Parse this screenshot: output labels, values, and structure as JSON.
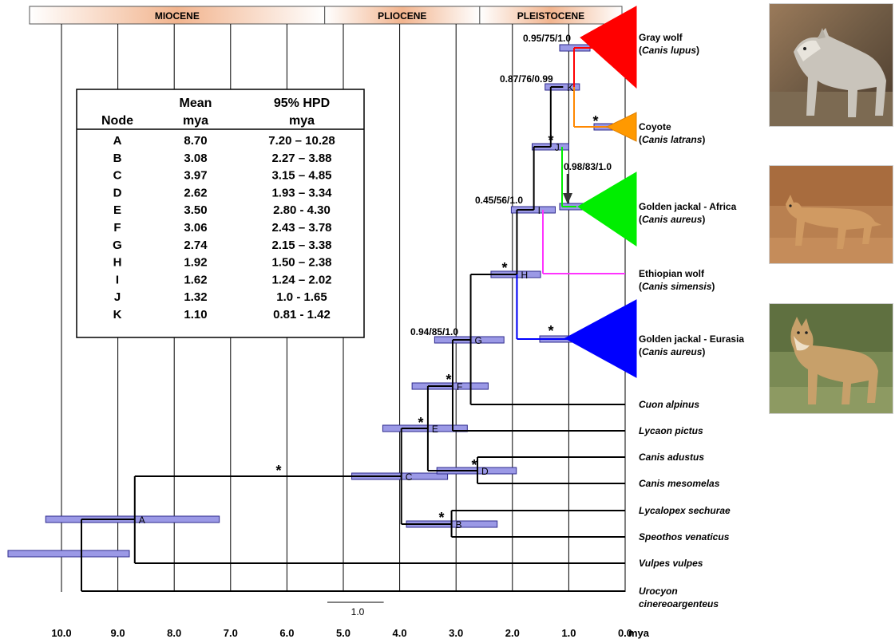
{
  "epochs": [
    {
      "name": "MIOCENE",
      "start": 11.08,
      "end": 5.33
    },
    {
      "name": "PLIOCENE",
      "start": 5.33,
      "end": 2.58
    },
    {
      "name": "PLEISTOCENE",
      "start": 2.58,
      "end": 0.0
    }
  ],
  "axis": {
    "unit": "mya",
    "min": 0.0,
    "max": 10.0,
    "step": 1.0,
    "tick_labels": [
      "10.0",
      "9.0",
      "8.0",
      "7.0",
      "6.0",
      "5.0",
      "4.0",
      "3.0",
      "2.0",
      "1.0",
      "0.0"
    ],
    "scale_bar_label": "1.0",
    "scale_bar_length": 1.0
  },
  "hpd_table": {
    "headers": [
      "Node",
      "Mean\nmya",
      "95% HPD\nmya"
    ],
    "rows": [
      [
        "A",
        "8.70",
        "7.20 – 10.28"
      ],
      [
        "B",
        "3.08",
        "2.27 – 3.88"
      ],
      [
        "C",
        "3.97",
        "3.15 – 4.85"
      ],
      [
        "D",
        "2.62",
        "1.93 – 3.34"
      ],
      [
        "E",
        "3.50",
        "2.80 - 4.30"
      ],
      [
        "F",
        "3.06",
        "2.43 – 3.78"
      ],
      [
        "G",
        "2.74",
        "2.15 – 3.38"
      ],
      [
        "H",
        "1.92",
        "1.50 – 2.38"
      ],
      [
        "I",
        "1.62",
        "1.24 – 2.02"
      ],
      [
        "J",
        "1.32",
        "1.0 - 1.65"
      ],
      [
        "K",
        "1.10",
        "0.81 - 1.42"
      ]
    ]
  },
  "nodes": [
    {
      "label": "A",
      "age": 8.7,
      "hpd": [
        7.2,
        10.28
      ]
    },
    {
      "label": "B",
      "age": 3.08,
      "hpd": [
        2.27,
        3.88
      ]
    },
    {
      "label": "C",
      "age": 3.97,
      "hpd": [
        3.15,
        4.85
      ]
    },
    {
      "label": "D",
      "age": 2.62,
      "hpd": [
        1.93,
        3.34
      ]
    },
    {
      "label": "E",
      "age": 3.5,
      "hpd": [
        2.8,
        4.3
      ]
    },
    {
      "label": "F",
      "age": 3.06,
      "hpd": [
        2.43,
        3.78
      ]
    },
    {
      "label": "G",
      "age": 2.74,
      "hpd": [
        2.15,
        3.38
      ]
    },
    {
      "label": "H",
      "age": 1.92,
      "hpd": [
        1.5,
        2.38
      ]
    },
    {
      "label": "I",
      "age": 1.62,
      "hpd": [
        1.24,
        2.02
      ]
    },
    {
      "label": "J",
      "age": 1.32,
      "hpd": [
        1.0,
        1.65
      ]
    },
    {
      "label": "K",
      "age": 1.1,
      "hpd": [
        0.81,
        1.42
      ]
    }
  ],
  "taxa": [
    {
      "name": "Gray wolf",
      "latin": "Canis lupus",
      "italic": false,
      "color": "#ff0000"
    },
    {
      "name": "Coyote",
      "latin": "Canis latrans",
      "italic": false,
      "color": "#ff9900"
    },
    {
      "name": "Golden jackal - Africa",
      "latin": "Canis aureus",
      "italic": false,
      "color": "#00ee00"
    },
    {
      "name": "Ethiopian wolf",
      "latin": "Canis simensis",
      "italic": false,
      "color": "#ff33ff"
    },
    {
      "name": "Golden jackal - Eurasia",
      "latin": "Canis aureus",
      "italic": false,
      "color": "#0000ff"
    },
    {
      "name": "Cuon alpinus",
      "italic": true
    },
    {
      "name": "Lycaon pictus",
      "italic": true
    },
    {
      "name": "Canis adustus",
      "italic": true
    },
    {
      "name": "Canis mesomelas",
      "italic": true
    },
    {
      "name": "Lycalopex sechurae",
      "italic": true
    },
    {
      "name": "Speothos venaticus",
      "italic": true
    },
    {
      "name": "Vulpes vulpes",
      "italic": true
    },
    {
      "name": "Urocyon cinereoargenteus",
      "italic": true
    }
  ],
  "support_labels": [
    {
      "text": "0.95/75/1.0",
      "node": "gray-wolf-crown"
    },
    {
      "text": "0.87/76/0.99",
      "node": "K"
    },
    {
      "text": "0.98/83/1.0",
      "node": "africa-crown"
    },
    {
      "text": "0.45/56/1.0",
      "node": "I"
    },
    {
      "text": "0.94/85/1.0",
      "node": "G"
    }
  ],
  "asterisk_symbol": "*",
  "colors": {
    "hpd_bar": "#9b99e6",
    "hpd_bar_stroke": "#2e2a8c",
    "epoch_fill": "#f2b48e",
    "branch": "#000000",
    "gray_wolf": "#ff0000",
    "coyote": "#ff9900",
    "coyote_branch": "#ff8800",
    "africa": "#00ee00",
    "ethiopian": "#ff33ff",
    "eurasia": "#0000ff"
  },
  "photos": [
    {
      "subject": "gray-wolf"
    },
    {
      "subject": "golden-jackal-africa"
    },
    {
      "subject": "golden-jackal-eurasia"
    }
  ]
}
